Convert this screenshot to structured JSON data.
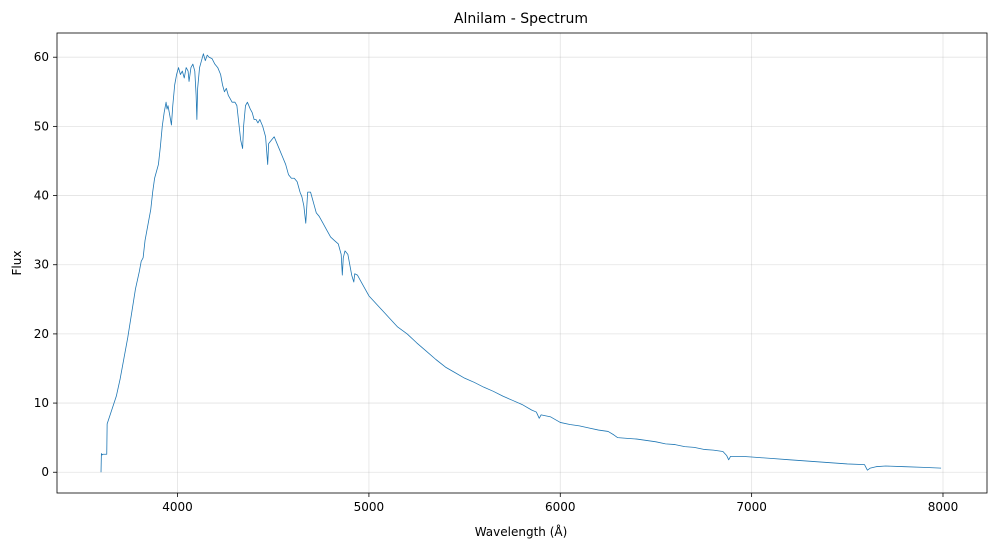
{
  "chart_data": {
    "type": "line",
    "title": "Alnilam - Spectrum",
    "xlabel": "Wavelength (Å)",
    "ylabel": "Flux",
    "xlim": [
      3370,
      8230
    ],
    "ylim": [
      -3.0,
      63.5
    ],
    "grid": true,
    "xticks": [
      4000,
      5000,
      6000,
      7000,
      8000
    ],
    "xtick_labels": [
      "4000",
      "5000",
      "6000",
      "7000",
      "8000"
    ],
    "yticks": [
      0,
      10,
      20,
      30,
      40,
      50,
      60
    ],
    "ytick_labels": [
      "0",
      "10",
      "20",
      "30",
      "40",
      "50",
      "60"
    ],
    "series": [
      {
        "name": "",
        "color": "#1f77b4",
        "points": [
          [
            3600,
            0.0
          ],
          [
            3602,
            2.7
          ],
          [
            3605,
            2.5
          ],
          [
            3610,
            2.6
          ],
          [
            3630,
            2.6
          ],
          [
            3632,
            7.0
          ],
          [
            3650,
            8.5
          ],
          [
            3680,
            11.0
          ],
          [
            3700,
            13.5
          ],
          [
            3720,
            16.5
          ],
          [
            3740,
            19.5
          ],
          [
            3760,
            23.0
          ],
          [
            3780,
            26.5
          ],
          [
            3800,
            29.0
          ],
          [
            3810,
            30.5
          ],
          [
            3820,
            31.0
          ],
          [
            3830,
            33.5
          ],
          [
            3840,
            35.0
          ],
          [
            3850,
            36.5
          ],
          [
            3860,
            38.0
          ],
          [
            3870,
            40.5
          ],
          [
            3880,
            42.5
          ],
          [
            3890,
            43.5
          ],
          [
            3900,
            44.5
          ],
          [
            3910,
            47.0
          ],
          [
            3920,
            50.0
          ],
          [
            3930,
            52.0
          ],
          [
            3940,
            53.5
          ],
          [
            3945,
            52.5
          ],
          [
            3950,
            53.0
          ],
          [
            3960,
            51.5
          ],
          [
            3968,
            50.2
          ],
          [
            3975,
            53.0
          ],
          [
            3985,
            56.0
          ],
          [
            3995,
            57.5
          ],
          [
            4005,
            58.5
          ],
          [
            4015,
            57.5
          ],
          [
            4025,
            58.0
          ],
          [
            4035,
            57.0
          ],
          [
            4045,
            58.5
          ],
          [
            4055,
            58.0
          ],
          [
            4060,
            56.5
          ],
          [
            4070,
            58.5
          ],
          [
            4080,
            59.0
          ],
          [
            4090,
            58.0
          ],
          [
            4097,
            54.5
          ],
          [
            4101,
            51.0
          ],
          [
            4105,
            55.5
          ],
          [
            4115,
            58.5
          ],
          [
            4125,
            59.5
          ],
          [
            4135,
            60.5
          ],
          [
            4145,
            59.5
          ],
          [
            4155,
            60.3
          ],
          [
            4165,
            60.0
          ],
          [
            4180,
            59.8
          ],
          [
            4195,
            59.0
          ],
          [
            4210,
            58.5
          ],
          [
            4225,
            57.5
          ],
          [
            4235,
            56.0
          ],
          [
            4245,
            55.0
          ],
          [
            4255,
            55.5
          ],
          [
            4265,
            54.5
          ],
          [
            4275,
            54.0
          ],
          [
            4285,
            53.5
          ],
          [
            4300,
            53.5
          ],
          [
            4310,
            53.0
          ],
          [
            4330,
            48.0
          ],
          [
            4340,
            46.8
          ],
          [
            4345,
            50.0
          ],
          [
            4355,
            53.0
          ],
          [
            4365,
            53.5
          ],
          [
            4380,
            52.5
          ],
          [
            4390,
            52.0
          ],
          [
            4400,
            51.0
          ],
          [
            4410,
            51.0
          ],
          [
            4420,
            50.5
          ],
          [
            4430,
            51.0
          ],
          [
            4445,
            50.0
          ],
          [
            4460,
            48.5
          ],
          [
            4471,
            44.5
          ],
          [
            4476,
            47.5
          ],
          [
            4490,
            48.0
          ],
          [
            4505,
            48.5
          ],
          [
            4520,
            47.5
          ],
          [
            4535,
            46.5
          ],
          [
            4550,
            45.5
          ],
          [
            4565,
            44.5
          ],
          [
            4580,
            43.0
          ],
          [
            4595,
            42.5
          ],
          [
            4610,
            42.5
          ],
          [
            4625,
            42.0
          ],
          [
            4640,
            40.5
          ],
          [
            4650,
            39.8
          ],
          [
            4660,
            38.5
          ],
          [
            4670,
            36.0
          ],
          [
            4680,
            40.5
          ],
          [
            4695,
            40.5
          ],
          [
            4705,
            39.5
          ],
          [
            4715,
            38.5
          ],
          [
            4725,
            37.5
          ],
          [
            4740,
            37.0
          ],
          [
            4760,
            36.0
          ],
          [
            4780,
            35.0
          ],
          [
            4800,
            34.0
          ],
          [
            4820,
            33.5
          ],
          [
            4840,
            33.0
          ],
          [
            4855,
            31.5
          ],
          [
            4861,
            28.5
          ],
          [
            4866,
            31.0
          ],
          [
            4875,
            32.0
          ],
          [
            4890,
            31.5
          ],
          [
            4900,
            30.0
          ],
          [
            4910,
            28.5
          ],
          [
            4921,
            27.5
          ],
          [
            4926,
            28.7
          ],
          [
            4940,
            28.5
          ],
          [
            4960,
            27.5
          ],
          [
            4980,
            26.5
          ],
          [
            5000,
            25.5
          ],
          [
            5050,
            24.0
          ],
          [
            5100,
            22.5
          ],
          [
            5150,
            21.0
          ],
          [
            5200,
            20.0
          ],
          [
            5250,
            18.7
          ],
          [
            5300,
            17.5
          ],
          [
            5350,
            16.3
          ],
          [
            5400,
            15.2
          ],
          [
            5450,
            14.4
          ],
          [
            5500,
            13.6
          ],
          [
            5550,
            13.0
          ],
          [
            5600,
            12.3
          ],
          [
            5650,
            11.7
          ],
          [
            5700,
            11.0
          ],
          [
            5750,
            10.4
          ],
          [
            5800,
            9.8
          ],
          [
            5850,
            9.0
          ],
          [
            5875,
            8.7
          ],
          [
            5890,
            7.8
          ],
          [
            5900,
            8.3
          ],
          [
            5950,
            8.0
          ],
          [
            6000,
            7.2
          ],
          [
            6050,
            6.9
          ],
          [
            6100,
            6.7
          ],
          [
            6150,
            6.4
          ],
          [
            6200,
            6.1
          ],
          [
            6250,
            5.9
          ],
          [
            6280,
            5.4
          ],
          [
            6300,
            5.0
          ],
          [
            6350,
            4.9
          ],
          [
            6400,
            4.8
          ],
          [
            6450,
            4.6
          ],
          [
            6500,
            4.4
          ],
          [
            6550,
            4.1
          ],
          [
            6600,
            4.0
          ],
          [
            6650,
            3.7
          ],
          [
            6700,
            3.6
          ],
          [
            6750,
            3.3
          ],
          [
            6800,
            3.2
          ],
          [
            6850,
            3.0
          ],
          [
            6870,
            2.4
          ],
          [
            6880,
            1.8
          ],
          [
            6890,
            2.3
          ],
          [
            6950,
            2.3
          ],
          [
            7000,
            2.2
          ],
          [
            7100,
            2.0
          ],
          [
            7200,
            1.8
          ],
          [
            7300,
            1.6
          ],
          [
            7400,
            1.4
          ],
          [
            7500,
            1.2
          ],
          [
            7590,
            1.1
          ],
          [
            7605,
            0.3
          ],
          [
            7620,
            0.6
          ],
          [
            7650,
            0.8
          ],
          [
            7700,
            0.9
          ],
          [
            7800,
            0.8
          ],
          [
            7900,
            0.7
          ],
          [
            7990,
            0.6
          ]
        ]
      }
    ]
  }
}
